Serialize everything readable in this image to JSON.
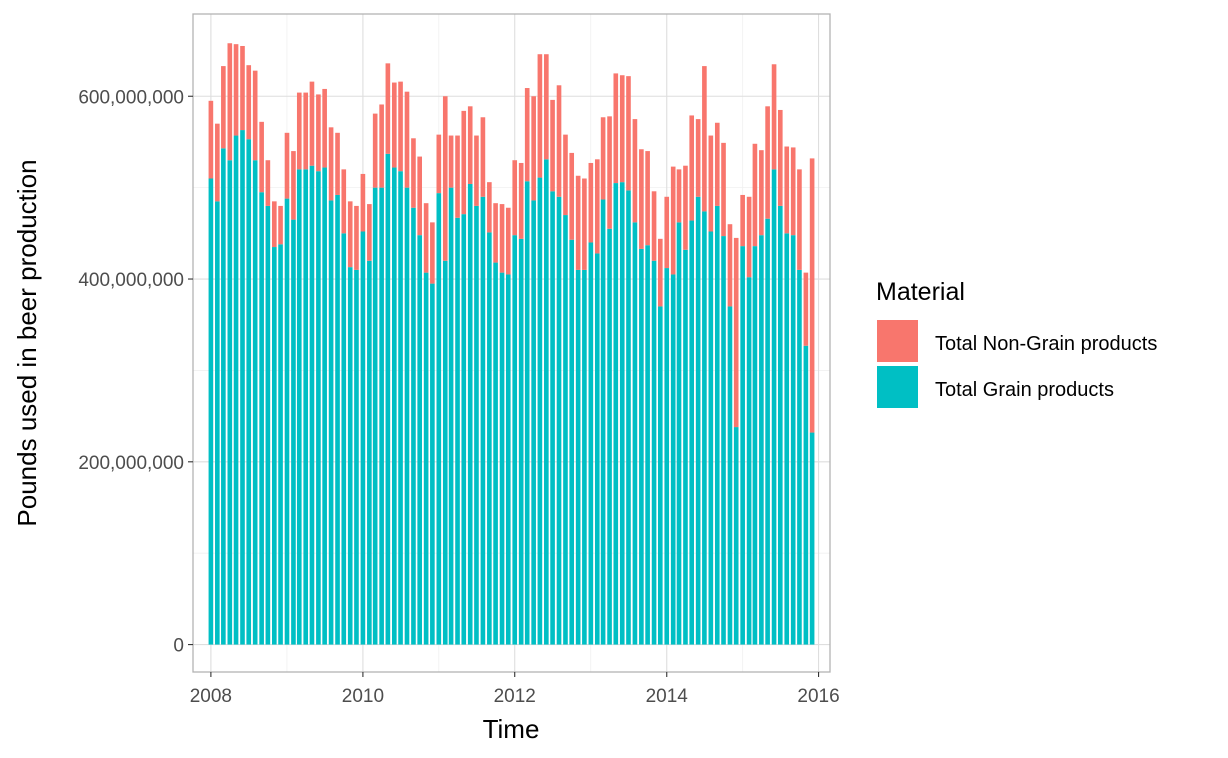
{
  "chart_data": {
    "type": "bar",
    "stacked": true,
    "title": "",
    "xlabel": "Time",
    "ylabel": "Pounds used in beer production",
    "xlim": [
      "2007-10-07",
      "2016-02-25"
    ],
    "ylim": [
      -30000000,
      690000000
    ],
    "x_ticks": [
      "2008-01-01",
      "2010-01-01",
      "2012-01-01",
      "2014-01-01",
      "2016-01-01"
    ],
    "x_tick_labels": [
      "2008",
      "2010",
      "2012",
      "2014",
      "2016"
    ],
    "y_ticks": [
      0,
      200000000,
      400000000,
      600000000
    ],
    "y_tick_labels": [
      "0",
      "200,000,000",
      "400,000,000",
      "600,000,000"
    ],
    "grid": true,
    "legend": {
      "title": "Material",
      "position": "right",
      "entries": [
        {
          "label": "Total Non-Grain products",
          "color": "#F8766D"
        },
        {
          "label": "Total Grain products",
          "color": "#00BFC4"
        }
      ]
    },
    "months": [
      "2008-01",
      "2008-02",
      "2008-03",
      "2008-04",
      "2008-05",
      "2008-06",
      "2008-07",
      "2008-08",
      "2008-09",
      "2008-10",
      "2008-11",
      "2008-12",
      "2009-01",
      "2009-02",
      "2009-03",
      "2009-04",
      "2009-05",
      "2009-06",
      "2009-07",
      "2009-08",
      "2009-09",
      "2009-10",
      "2009-11",
      "2009-12",
      "2010-01",
      "2010-02",
      "2010-03",
      "2010-04",
      "2010-05",
      "2010-06",
      "2010-07",
      "2010-08",
      "2010-09",
      "2010-10",
      "2010-11",
      "2010-12",
      "2011-01",
      "2011-02",
      "2011-03",
      "2011-04",
      "2011-05",
      "2011-06",
      "2011-07",
      "2011-08",
      "2011-09",
      "2011-10",
      "2011-11",
      "2011-12",
      "2012-01",
      "2012-02",
      "2012-03",
      "2012-04",
      "2012-05",
      "2012-06",
      "2012-07",
      "2012-08",
      "2012-09",
      "2012-10",
      "2012-11",
      "2012-12",
      "2013-01",
      "2013-02",
      "2013-03",
      "2013-04",
      "2013-05",
      "2013-06",
      "2013-07",
      "2013-08",
      "2013-09",
      "2013-10",
      "2013-11",
      "2013-12",
      "2014-01",
      "2014-02",
      "2014-03",
      "2014-04",
      "2014-05",
      "2014-06",
      "2014-07",
      "2014-08",
      "2014-09",
      "2014-10",
      "2014-11",
      "2014-12",
      "2015-01",
      "2015-02",
      "2015-03",
      "2015-04",
      "2015-05",
      "2015-06",
      "2015-07",
      "2015-08",
      "2015-09",
      "2015-10",
      "2015-11",
      "2015-12"
    ],
    "series": [
      {
        "name": "Total Grain products",
        "color": "#00BFC4",
        "values": [
          510000000,
          485000000,
          543000000,
          530000000,
          557000000,
          563000000,
          553000000,
          530000000,
          495000000,
          480000000,
          435000000,
          438000000,
          488000000,
          465000000,
          520000000,
          520000000,
          524000000,
          518000000,
          522000000,
          486000000,
          492000000,
          450000000,
          413000000,
          410000000,
          452000000,
          420000000,
          500000000,
          500000000,
          537000000,
          522000000,
          518000000,
          500000000,
          478000000,
          448000000,
          407000000,
          395000000,
          494000000,
          420000000,
          500000000,
          467000000,
          471000000,
          504000000,
          480000000,
          490000000,
          451000000,
          418000000,
          407000000,
          405000000,
          448000000,
          444000000,
          507000000,
          486000000,
          511000000,
          531000000,
          496000000,
          490000000,
          470000000,
          443000000,
          410000000,
          410000000,
          440000000,
          428000000,
          487000000,
          455000000,
          505000000,
          506000000,
          497000000,
          462000000,
          433000000,
          437000000,
          420000000,
          370000000,
          412000000,
          405000000,
          462000000,
          432000000,
          464000000,
          490000000,
          474000000,
          452000000,
          480000000,
          447000000,
          370000000,
          238000000,
          436000000,
          402000000,
          436000000,
          448000000,
          466000000,
          520000000,
          480000000,
          450000000,
          448000000,
          410000000,
          327000000,
          232000000
        ]
      },
      {
        "name": "Total Non-Grain products",
        "color": "#F8766D",
        "values": [
          85000000,
          85000000,
          90000000,
          128000000,
          100000000,
          92000000,
          81000000,
          98000000,
          77000000,
          50000000,
          50000000,
          42000000,
          72000000,
          75000000,
          84000000,
          84000000,
          92000000,
          84000000,
          86000000,
          80000000,
          68000000,
          70000000,
          72000000,
          70000000,
          63000000,
          62000000,
          81000000,
          91000000,
          99000000,
          93000000,
          98000000,
          105000000,
          76000000,
          86000000,
          76000000,
          67000000,
          64000000,
          180000000,
          57000000,
          90000000,
          113000000,
          85000000,
          77000000,
          87000000,
          55000000,
          65000000,
          75000000,
          73000000,
          82000000,
          83000000,
          102000000,
          114000000,
          135000000,
          115000000,
          100000000,
          122000000,
          88000000,
          95000000,
          103000000,
          100000000,
          87000000,
          103000000,
          90000000,
          123000000,
          120000000,
          117000000,
          125000000,
          113000000,
          109000000,
          103000000,
          76000000,
          74000000,
          78000000,
          118000000,
          58000000,
          92000000,
          115000000,
          85000000,
          159000000,
          105000000,
          91000000,
          102000000,
          90000000,
          207000000,
          56000000,
          88000000,
          112000000,
          93000000,
          123000000,
          115000000,
          105000000,
          95000000,
          96000000,
          110000000,
          80000000,
          300000000
        ]
      }
    ]
  }
}
